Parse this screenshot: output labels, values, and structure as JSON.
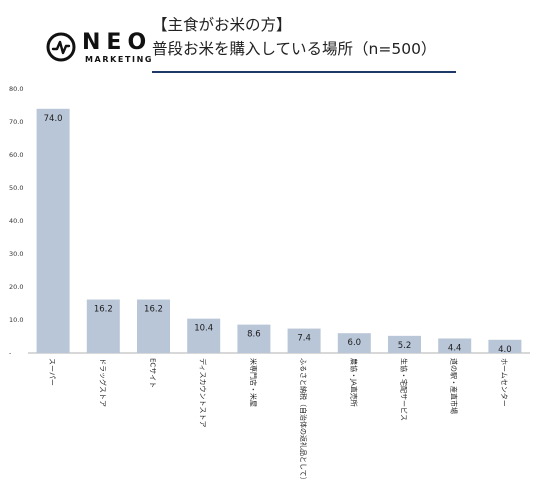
{
  "brand": {
    "name": "NEO",
    "tagline": "MARKETING"
  },
  "header": {
    "title_line1": "【主食がお米の方】",
    "title_line2": "普段お米を購入している場所（n=500）"
  },
  "colors": {
    "bar": "#b9c6d8",
    "rule": "#1f3a68"
  },
  "chart_data": {
    "type": "bar",
    "categories": [
      "スーパー",
      "ドラッグストア",
      "ECサイト",
      "ディスカウントストア",
      "米専門店・米屋",
      "ふるさと納税（自治体の返礼品として）",
      "農協・JA直売所",
      "生協・宅配サービス",
      "道の駅・産直市場",
      "ホームセンター"
    ],
    "values": [
      74.0,
      16.2,
      16.2,
      10.4,
      8.6,
      7.4,
      6.0,
      5.2,
      4.4,
      4.0
    ],
    "value_labels": [
      "74.0",
      "16.2",
      "16.2",
      "10.4",
      "8.6",
      "7.4",
      "6.0",
      "5.2",
      "4.4",
      "4.0"
    ],
    "yticks": [
      "80.0",
      "70.0",
      "60.0",
      "50.0",
      "40.0",
      "30.0",
      "20.0",
      "10.0",
      "-"
    ],
    "ylim": [
      0,
      80
    ],
    "grid": false
  }
}
